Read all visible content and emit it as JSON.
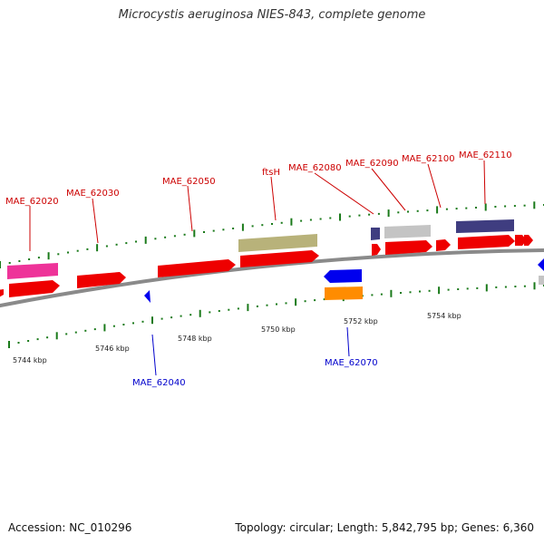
{
  "header": {
    "title": "Microcystis aeruginosa NIES-843, complete genome"
  },
  "footer": {
    "accession": "Accession: NC_010296",
    "summary": "Topology: circular; Length: 5,842,795 bp; Genes: 6,360"
  },
  "colors": {
    "backbone": "#8a8a8a",
    "forward_label": "#cc0000",
    "reverse_label": "#0000cc",
    "cds_red": "#ee0000",
    "pink": "#ee3399",
    "khaki": "#b8b27a",
    "slate": "#3f3d80",
    "grey": "#c4c4c4",
    "blue": "#0000ee",
    "orange": "#ff8c00",
    "tick": "#1a7a1a"
  },
  "scale_labels": [
    "5744 kbp",
    "5746 kbp",
    "5748 kbp",
    "5750 kbp",
    "5752 kbp",
    "5754 kbp"
  ],
  "gene_labels": {
    "forward": [
      "MAE_62020",
      "MAE_62030",
      "MAE_62050",
      "ftsH",
      "MAE_62080",
      "MAE_62090",
      "MAE_62100",
      "MAE_62110"
    ],
    "reverse": [
      "MAE_62040",
      "MAE_62070"
    ]
  }
}
